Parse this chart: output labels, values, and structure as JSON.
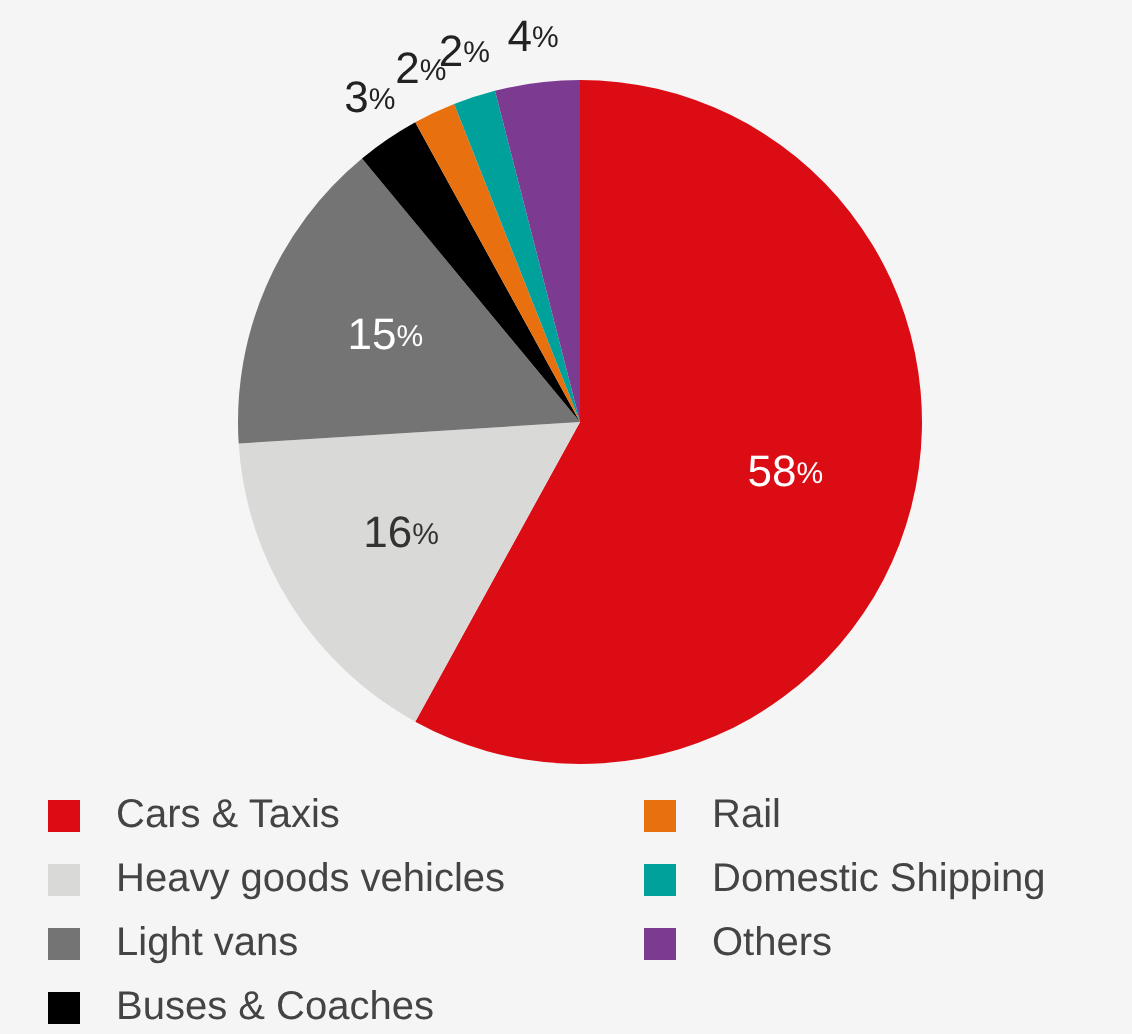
{
  "chart_data": {
    "type": "pie",
    "categories": [
      "Cars & Taxis",
      "Heavy goods vehicles",
      "Light vans",
      "Buses & Coaches",
      "Rail",
      "Domestic Shipping",
      "Others"
    ],
    "values": [
      58,
      16,
      15,
      3,
      2,
      2,
      4
    ],
    "colors": [
      "#dc0c15",
      "#d9d9d7",
      "#747474",
      "#000000",
      "#e8700f",
      "#00a19a",
      "#7d3a91"
    ],
    "value_labels": [
      "58%",
      "16%",
      "15%",
      "3%",
      "2%",
      "2%",
      "4%"
    ],
    "legend": "bottom"
  }
}
